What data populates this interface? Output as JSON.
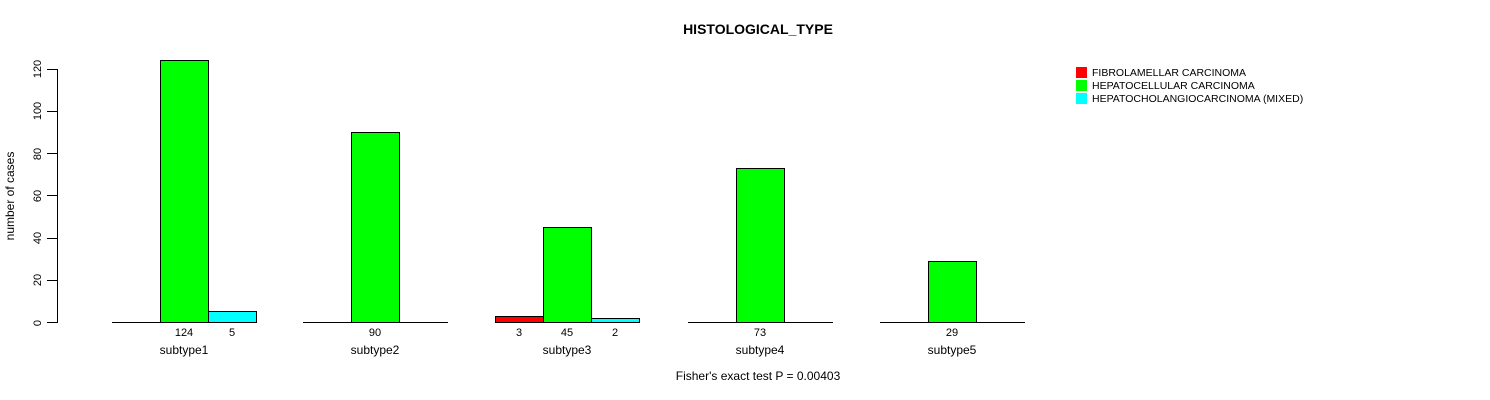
{
  "chart_data": {
    "type": "bar",
    "title": "HISTOLOGICAL_TYPE",
    "xlabel": "",
    "ylabel": "number of cases",
    "annotation": "Fisher's exact test P = 0.00403",
    "categories": [
      "subtype1",
      "subtype2",
      "subtype3",
      "subtype4",
      "subtype5"
    ],
    "series": [
      {
        "name": "FIBROLAMELLAR CARCINOMA",
        "color": "#ff0000",
        "values": [
          0,
          0,
          3,
          0,
          0
        ]
      },
      {
        "name": "HEPATOCELLULAR CARCINOMA",
        "color": "#00ff00",
        "values": [
          124,
          90,
          45,
          73,
          29
        ]
      },
      {
        "name": "HEPATOCHOLANGIOCARCINOMA (MIXED)",
        "color": "#00ffff",
        "values": [
          5,
          0,
          2,
          0,
          0
        ]
      }
    ],
    "bar_value_labels": "nonzero values shown under each bar",
    "yticks": [
      0,
      20,
      40,
      60,
      80,
      100,
      120
    ],
    "ylim": [
      0,
      124
    ],
    "grid": false,
    "legend_position": "top-right",
    "axis_color": "#000000",
    "background_color": "#ffffff"
  }
}
